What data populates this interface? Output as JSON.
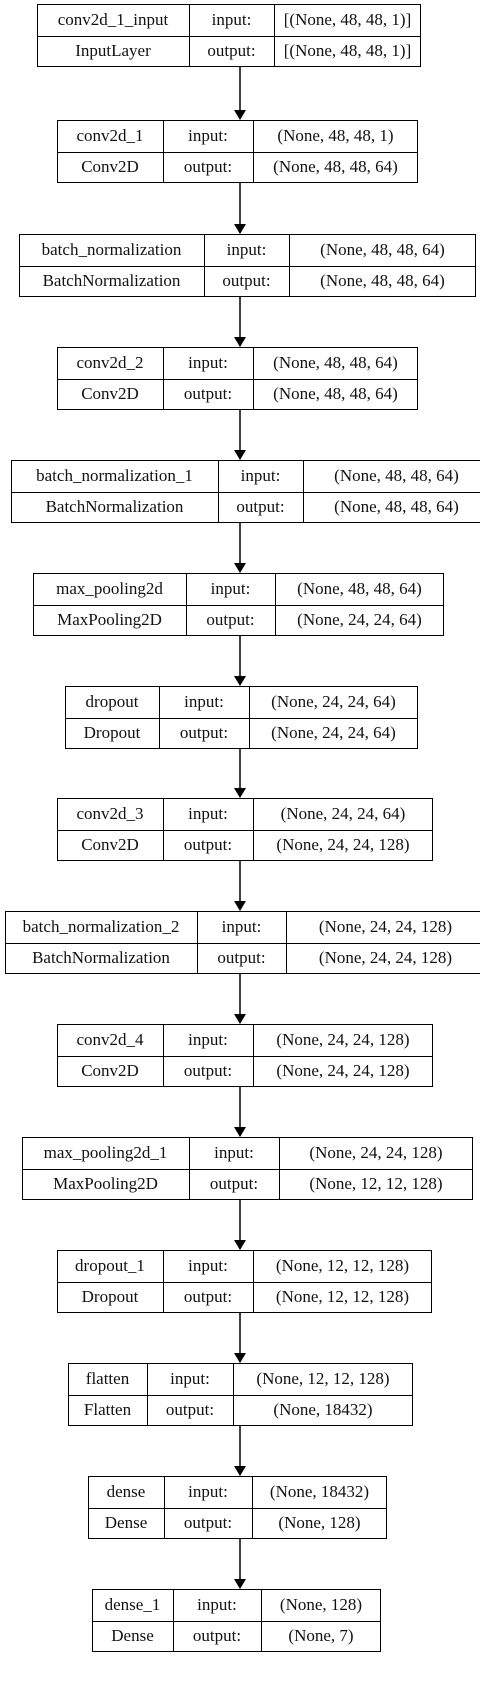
{
  "layers": [
    {
      "name": "conv2d_1_input",
      "type": "InputLayer",
      "in_label": "input:",
      "out_label": "output:",
      "input_shape": "[(None, 48, 48, 1)]",
      "output_shape": "[(None, 48, 48, 1)]"
    },
    {
      "name": "conv2d_1",
      "type": "Conv2D",
      "in_label": "input:",
      "out_label": "output:",
      "input_shape": "(None, 48, 48, 1)",
      "output_shape": "(None, 48, 48, 64)"
    },
    {
      "name": "batch_normalization",
      "type": "BatchNormalization",
      "in_label": "input:",
      "out_label": "output:",
      "input_shape": "(None, 48, 48, 64)",
      "output_shape": "(None, 48, 48, 64)"
    },
    {
      "name": "conv2d_2",
      "type": "Conv2D",
      "in_label": "input:",
      "out_label": "output:",
      "input_shape": "(None, 48, 48, 64)",
      "output_shape": "(None, 48, 48, 64)"
    },
    {
      "name": "batch_normalization_1",
      "type": "BatchNormalization",
      "in_label": "input:",
      "out_label": "output:",
      "input_shape": "(None, 48, 48, 64)",
      "output_shape": "(None, 48, 48, 64)"
    },
    {
      "name": "max_pooling2d",
      "type": "MaxPooling2D",
      "in_label": "input:",
      "out_label": "output:",
      "input_shape": "(None, 48, 48, 64)",
      "output_shape": "(None, 24, 24, 64)"
    },
    {
      "name": "dropout",
      "type": "Dropout",
      "in_label": "input:",
      "out_label": "output:",
      "input_shape": "(None, 24, 24, 64)",
      "output_shape": "(None, 24, 24, 64)"
    },
    {
      "name": "conv2d_3",
      "type": "Conv2D",
      "in_label": "input:",
      "out_label": "output:",
      "input_shape": "(None, 24, 24, 64)",
      "output_shape": "(None, 24, 24, 128)"
    },
    {
      "name": "batch_normalization_2",
      "type": "BatchNormalization",
      "in_label": "input:",
      "out_label": "output:",
      "input_shape": "(None, 24, 24, 128)",
      "output_shape": "(None, 24, 24, 128)"
    },
    {
      "name": "conv2d_4",
      "type": "Conv2D",
      "in_label": "input:",
      "out_label": "output:",
      "input_shape": "(None, 24, 24, 128)",
      "output_shape": "(None, 24, 24, 128)"
    },
    {
      "name": "max_pooling2d_1",
      "type": "MaxPooling2D",
      "in_label": "input:",
      "out_label": "output:",
      "input_shape": "(None, 24, 24, 128)",
      "output_shape": "(None, 12, 12, 128)"
    },
    {
      "name": "dropout_1",
      "type": "Dropout",
      "in_label": "input:",
      "out_label": "output:",
      "input_shape": "(None, 12, 12, 128)",
      "output_shape": "(None, 12, 12, 128)"
    },
    {
      "name": "flatten",
      "type": "Flatten",
      "in_label": "input:",
      "out_label": "output:",
      "input_shape": "(None, 12, 12, 128)",
      "output_shape": "(None, 18432)"
    },
    {
      "name": "dense",
      "type": "Dense",
      "in_label": "input:",
      "out_label": "output:",
      "input_shape": "(None, 18432)",
      "output_shape": "(None, 128)"
    },
    {
      "name": "dense_1",
      "type": "Dense",
      "in_label": "input:",
      "out_label": "output:",
      "input_shape": "(None, 128)",
      "output_shape": "(None, 7)"
    }
  ]
}
